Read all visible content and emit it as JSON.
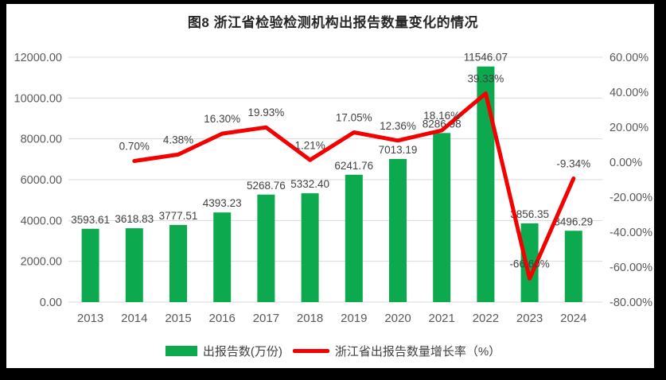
{
  "title": "图8 浙江省检验检测机构出报告数量变化的情况",
  "colors": {
    "bar": "#0CA94E",
    "line": "#F40000",
    "grid": "#D9D9D9",
    "axis_text": "#595959",
    "label_text": "#404040",
    "title_text": "#262626",
    "frame": "#000000",
    "background": "#FFFFFF"
  },
  "legend": {
    "position": "bottom",
    "items": [
      {
        "type": "bar",
        "label": "出报告数(万份)"
      },
      {
        "type": "line",
        "label": "浙江省出报告数量增长率（%）"
      }
    ]
  },
  "chart_data": {
    "type": "bar+line-combo",
    "title": "图8 浙江省检验检测机构出报告数量变化的情况",
    "categories": [
      "2013",
      "2014",
      "2015",
      "2016",
      "2017",
      "2018",
      "2019",
      "2020",
      "2021",
      "2022",
      "2023",
      "2024"
    ],
    "series": [
      {
        "name": "出报告数(万份)",
        "type": "bar",
        "axis": "left",
        "values": [
          3593.61,
          3618.83,
          3777.51,
          4393.23,
          5268.76,
          5332.4,
          6241.76,
          7013.19,
          8286.98,
          11546.07,
          3856.35,
          3496.29
        ],
        "labels": [
          "3593.61",
          "3618.83",
          "3777.51",
          "4393.23",
          "5268.76",
          "5332.40",
          "6241.76",
          "7013.19",
          "8286.98",
          "11546.07",
          "3856.35",
          "3496.29"
        ]
      },
      {
        "name": "浙江省出报告数量增长率（%）",
        "type": "line",
        "axis": "right",
        "values": [
          null,
          0.7,
          4.38,
          16.3,
          19.93,
          1.21,
          17.05,
          12.36,
          18.16,
          39.33,
          -66.6,
          -9.34
        ],
        "labels": [
          null,
          "0.70%",
          "4.38%",
          "16.30%",
          "19.93%",
          "1.21%",
          "17.05%",
          "12.36%",
          "18.16%",
          "39.33%",
          "-66.60%",
          "-9.34%"
        ]
      }
    ],
    "left_axis": {
      "min": 0,
      "max": 12000,
      "step": 2000,
      "ticks": [
        "12000.00",
        "10000.00",
        "8000.00",
        "6000.00",
        "4000.00",
        "2000.00",
        "0.00"
      ]
    },
    "right_axis": {
      "min": -80,
      "max": 60,
      "step": 20,
      "ticks": [
        "60.00%",
        "40.00%",
        "20.00%",
        "0.00%",
        "-20.00%",
        "-40.00%",
        "-60.00%",
        "-80.00%"
      ]
    },
    "grid": true,
    "legend_position": "bottom"
  }
}
